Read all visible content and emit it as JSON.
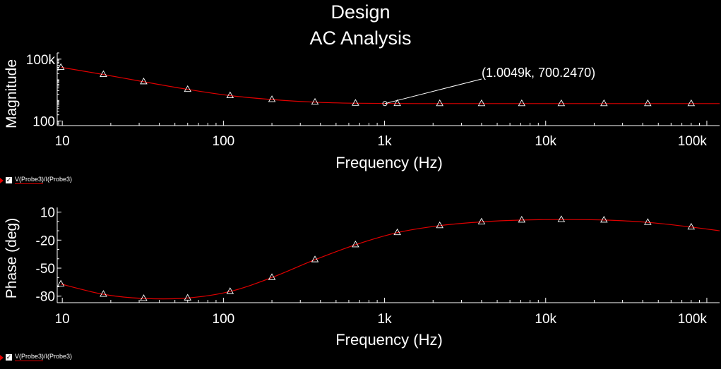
{
  "title": {
    "line1": "Design",
    "line2": "AC Analysis"
  },
  "colors": {
    "background": "#000000",
    "axis": "#ffffff",
    "trace": "#e00000",
    "marker": "#ffffff"
  },
  "legend": {
    "top_label": "V(Probe3)/I(Probe3)",
    "bottom_label": "V(Probe3)/I(Probe3)"
  },
  "chart_data": [
    {
      "type": "line",
      "name": "magnitude",
      "title": "",
      "xlabel": "Frequency (Hz)",
      "ylabel": "Magnitude",
      "xscale": "log",
      "yscale": "log",
      "xlim": [
        9.3,
        120000
      ],
      "ylim": [
        60,
        200000
      ],
      "x_ticks": [
        {
          "value": 10,
          "label": "10"
        },
        {
          "value": 100,
          "label": "100"
        },
        {
          "value": 1000,
          "label": "1k"
        },
        {
          "value": 10000,
          "label": "10k"
        },
        {
          "value": 100000,
          "label": "100k"
        }
      ],
      "y_ticks": [
        {
          "value": 100,
          "label": "100"
        },
        {
          "value": 100000,
          "label": "100k"
        }
      ],
      "grid": false,
      "series": [
        {
          "name": "V(Probe3)/I(Probe3)",
          "color": "#e00000",
          "x": [
            9.8,
            18,
            32,
            60,
            110,
            200,
            370,
            660,
            1200,
            2200,
            4000,
            7100,
            12500,
            23000,
            43000,
            80000,
            120000
          ],
          "y": [
            40000,
            18000,
            8000,
            3400,
            1700,
            1100,
            820,
            730,
            705,
            700,
            700,
            700,
            700,
            700,
            700,
            700,
            700
          ]
        }
      ],
      "annotations": [
        {
          "x": 1004.9,
          "y": 700.247,
          "text": "(1.0049k, 700.2470)"
        }
      ]
    },
    {
      "type": "line",
      "name": "phase",
      "title": "",
      "xlabel": "Frequency (Hz)",
      "ylabel": "Phase (deg)",
      "xscale": "log",
      "yscale": "linear",
      "xlim": [
        9.3,
        120000
      ],
      "ylim": [
        -87,
        15
      ],
      "x_ticks": [
        {
          "value": 10,
          "label": "10"
        },
        {
          "value": 100,
          "label": "100"
        },
        {
          "value": 1000,
          "label": "1k"
        },
        {
          "value": 10000,
          "label": "10k"
        },
        {
          "value": 100000,
          "label": "100k"
        }
      ],
      "y_ticks": [
        {
          "value": 10,
          "label": "10"
        },
        {
          "value": -20,
          "label": "-20"
        },
        {
          "value": -50,
          "label": "-50"
        },
        {
          "value": -80,
          "label": "-80"
        }
      ],
      "grid": false,
      "series": [
        {
          "name": "V(Probe3)/I(Probe3)",
          "color": "#e00000",
          "x": [
            9.8,
            18,
            32,
            60,
            110,
            200,
            370,
            660,
            1200,
            2200,
            4000,
            7100,
            12500,
            23000,
            43000,
            80000,
            120000
          ],
          "y": [
            -67,
            -78,
            -82.5,
            -82,
            -75,
            -60,
            -41,
            -25,
            -12,
            -4.5,
            -0.5,
            1.5,
            2,
            1.5,
            -1,
            -6,
            -10
          ]
        }
      ]
    }
  ]
}
